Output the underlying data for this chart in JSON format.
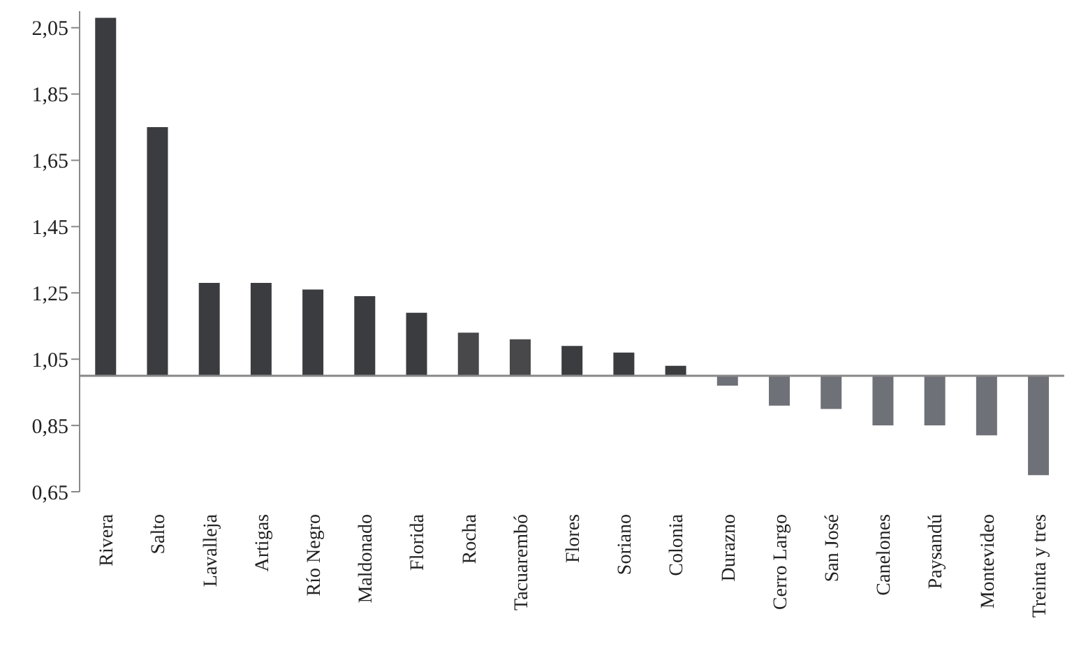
{
  "chart_data": {
    "type": "bar",
    "categories": [
      "Rivera",
      "Salto",
      "Lavalleja",
      "Artigas",
      "Río Negro",
      "Maldonado",
      "Florida",
      "Rocha",
      "Tacuarembó",
      "Flores",
      "Soriano",
      "Colonia",
      "Durazno",
      "Cerro Largo",
      "San José",
      "Canelones",
      "Paysandú",
      "Montevideo",
      "Treinta y tres"
    ],
    "base": [
      1,
      1,
      1,
      1,
      1,
      1,
      1,
      1,
      1,
      1,
      1,
      1,
      1,
      1,
      1,
      1,
      1,
      1,
      1
    ],
    "values": [
      1.08,
      0.75,
      0.28,
      0.28,
      0.26,
      0.24,
      0.19,
      0.13,
      0.11,
      0.09,
      0.07,
      0.03,
      -0.03,
      -0.09,
      -0.1,
      -0.15,
      -0.15,
      -0.18,
      -0.3
    ],
    "colors": [
      "#3b3c40",
      "#3b3c40",
      "#3b3c40",
      "#3b3c40",
      "#3b3c40",
      "#3b3c40",
      "#3b3c40",
      "#48484a",
      "#48484a",
      "#3b3c40",
      "#3b3c40",
      "#3b3c40",
      "#6f7178",
      "#6f7178",
      "#6f7178",
      "#6f7178",
      "#6f7178",
      "#6f7178",
      "#6f7178"
    ],
    "ylim": [
      0.65,
      2.1
    ],
    "yticks": [
      {
        "value": 0.65,
        "label": "0,65"
      },
      {
        "value": 0.85,
        "label": "0,85"
      },
      {
        "value": 1.05,
        "label": "1,05"
      },
      {
        "value": 1.25,
        "label": "1,25"
      },
      {
        "value": 1.45,
        "label": "1,45"
      },
      {
        "value": 1.65,
        "label": "1,65"
      },
      {
        "value": 1.85,
        "label": "1,85"
      },
      {
        "value": 2.05,
        "label": "2,05"
      }
    ],
    "ref_lines": [
      {
        "axis": "y",
        "value": 1,
        "color": "#888888"
      }
    ],
    "grid": false,
    "legend": false
  }
}
